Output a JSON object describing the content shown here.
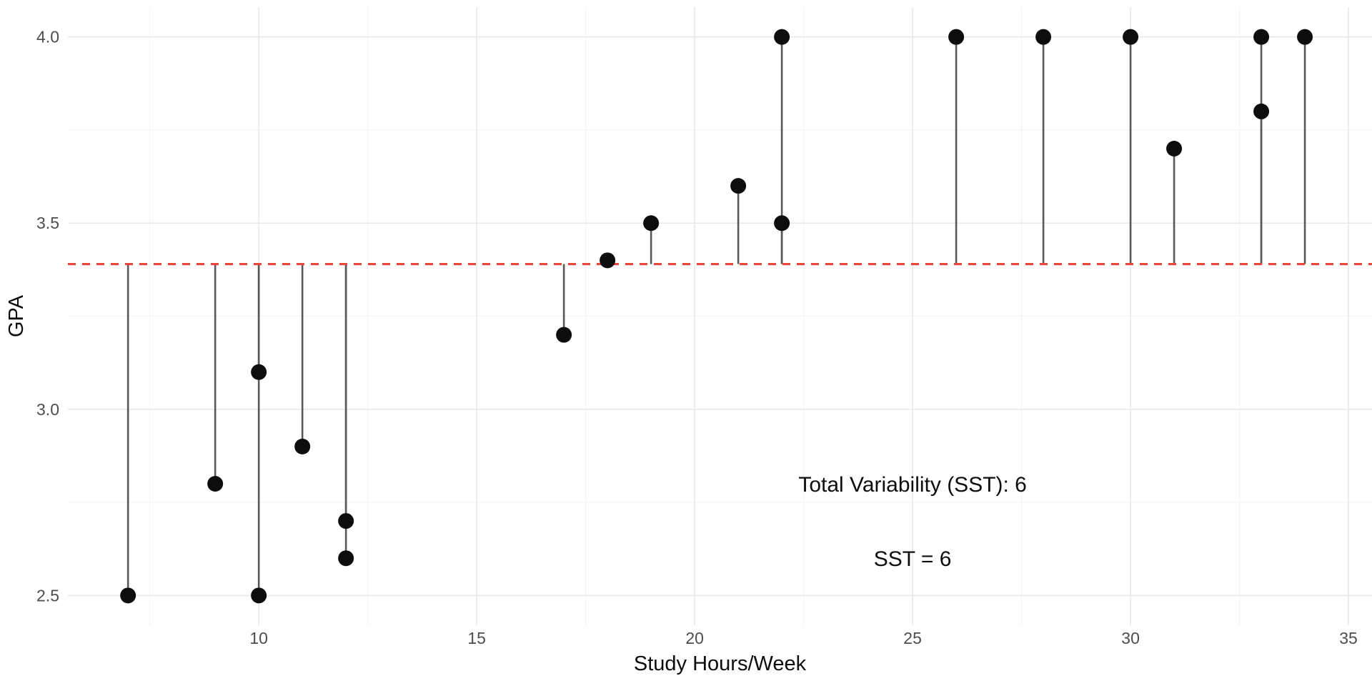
{
  "colors": {
    "background": "#ffffff",
    "point": "#0d0d0d",
    "stem": "#595959",
    "grid_major": "#e9e9e9",
    "grid_minor": "#f2f2f2",
    "mean_line_red": "#e8473c",
    "tick_label_gray": "#4d4d4d",
    "text_black": "#0d0d0d"
  },
  "chart_data": {
    "type": "scatter",
    "title": "",
    "xlabel": "Study Hours/Week",
    "ylabel": "GPA",
    "xlim": [
      5.62,
      35.54
    ],
    "ylim": [
      2.42,
      4.08
    ],
    "x_ticks": [
      "10",
      "15",
      "20",
      "25",
      "30",
      "35"
    ],
    "y_ticks": [
      "2.5",
      "3.0",
      "3.5",
      "4.0"
    ],
    "grid": "major and minor gridlines, no legend, white background",
    "points": [
      {
        "x": 7,
        "y": 2.5
      },
      {
        "x": 9,
        "y": 2.8
      },
      {
        "x": 10,
        "y": 3.1
      },
      {
        "x": 10,
        "y": 2.5
      },
      {
        "x": 11,
        "y": 2.9
      },
      {
        "x": 12,
        "y": 2.7
      },
      {
        "x": 12,
        "y": 2.6
      },
      {
        "x": 17,
        "y": 3.2
      },
      {
        "x": 18,
        "y": 3.4
      },
      {
        "x": 19,
        "y": 3.5
      },
      {
        "x": 21,
        "y": 3.6
      },
      {
        "x": 22,
        "y": 4.0
      },
      {
        "x": 22,
        "y": 3.5
      },
      {
        "x": 26,
        "y": 4.0
      },
      {
        "x": 28,
        "y": 4.0
      },
      {
        "x": 30,
        "y": 4.0
      },
      {
        "x": 31,
        "y": 3.7
      },
      {
        "x": 33,
        "y": 4.0
      },
      {
        "x": 33,
        "y": 3.8
      },
      {
        "x": 34,
        "y": 4.0
      }
    ],
    "mean_line": {
      "y": 3.39,
      "color": "#e8473c",
      "style": "dashed"
    },
    "stems": "vertical segment from each point to the dashed mean line",
    "annotations": [
      {
        "text": "Total Variability (SST): 6",
        "x": 25,
        "y": 2.8
      },
      {
        "text": "SST = 6",
        "x": 25,
        "y": 2.6
      }
    ]
  }
}
